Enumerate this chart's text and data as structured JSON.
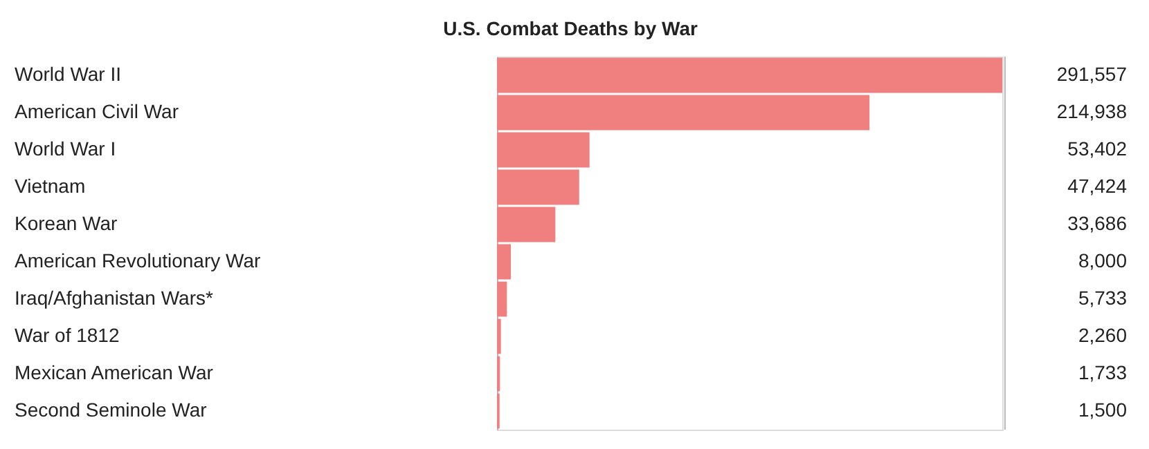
{
  "chart_data": {
    "type": "bar",
    "orientation": "horizontal",
    "title": "U.S. Combat Deaths by War",
    "categories": [
      "World War II",
      "American Civil War",
      "World War I",
      "Vietnam",
      "Korean War",
      "American Revolutionary War",
      "Iraq/Afghanistan Wars*",
      "War of 1812",
      "Mexican American War",
      "Second Seminole War"
    ],
    "values": [
      291557,
      214938,
      53402,
      47424,
      33686,
      8000,
      5733,
      2260,
      1733,
      1500
    ],
    "value_labels": [
      "291,557",
      "214,938",
      "53,402",
      "47,424",
      "33,686",
      "8,000",
      "5,733",
      "2,260",
      "1,733",
      "1,500"
    ],
    "color": "#f08080",
    "grid": false
  }
}
